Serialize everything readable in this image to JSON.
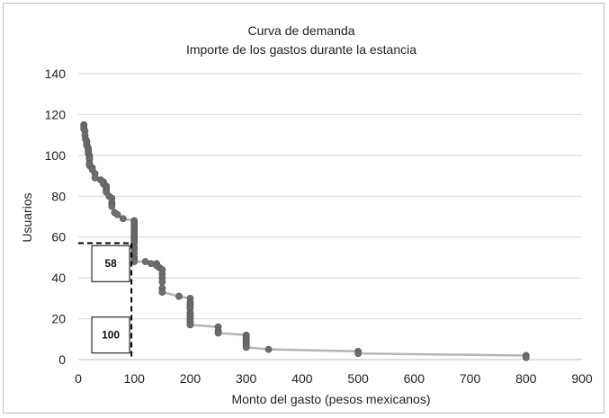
{
  "chart_data": {
    "type": "line",
    "title": "Curva de demanda",
    "subtitle": "Importe de los gastos durante la estancia",
    "xlabel": "Monto del gasto (pesos mexicanos)",
    "ylabel": "Usuarios",
    "xlim": [
      0,
      900
    ],
    "ylim": [
      0,
      140
    ],
    "xticks": [
      0,
      100,
      200,
      300,
      400,
      500,
      600,
      700,
      800,
      900
    ],
    "yticks": [
      0,
      20,
      40,
      60,
      80,
      100,
      120,
      140
    ],
    "grid": "horizontal",
    "legend": "none",
    "series": [
      {
        "marker": "circle",
        "line_color": "#b5b5b5",
        "marker_color": "#6e6e6e",
        "x": [
          10,
          10,
          10,
          12,
          12,
          13,
          15,
          15,
          15,
          17,
          18,
          18,
          18,
          20,
          20,
          20,
          20,
          20,
          25,
          25,
          30,
          30,
          40,
          45,
          45,
          50,
          50,
          50,
          50,
          55,
          60,
          60,
          60,
          60,
          65,
          70,
          80,
          100,
          100,
          100,
          100,
          100,
          100,
          100,
          100,
          100,
          100,
          100,
          100,
          100,
          100,
          100,
          100,
          100,
          100,
          120,
          130,
          140,
          140,
          145,
          150,
          150,
          150,
          150,
          150,
          150,
          180,
          200,
          200,
          200,
          200,
          200,
          200,
          200,
          200,
          200,
          200,
          200,
          200,
          250,
          250,
          250,
          300,
          300,
          300,
          300,
          300,
          300,
          300,
          340,
          500,
          500,
          800,
          800
        ],
        "y": [
          115,
          114,
          113,
          112,
          110,
          108,
          107,
          106,
          105,
          104,
          103,
          102,
          101,
          100,
          99,
          98,
          96,
          95,
          94,
          93,
          91,
          89,
          88,
          87,
          86,
          85,
          84,
          83,
          82,
          80,
          79,
          77,
          76,
          75,
          72,
          71,
          69,
          68,
          67,
          66,
          65,
          64,
          63,
          62,
          61,
          60,
          59,
          58,
          57,
          55,
          54,
          52,
          50,
          49,
          48,
          48,
          47,
          47,
          46,
          45,
          44,
          42,
          40,
          38,
          35,
          33,
          31,
          30,
          28,
          27,
          26,
          25,
          23,
          22,
          21,
          20,
          19,
          18,
          17,
          16,
          14,
          13,
          12,
          11,
          10,
          9,
          8,
          7,
          6,
          5,
          4,
          3,
          2,
          1
        ]
      }
    ],
    "reference_lines": {
      "x_value": 95,
      "y_value": 57,
      "color": "#000000",
      "style": "dashed"
    },
    "annotations": [
      {
        "text": "58",
        "x_value": 58,
        "y_value": 47
      },
      {
        "text": "100",
        "x_value": 58,
        "y_value": 12
      }
    ]
  }
}
